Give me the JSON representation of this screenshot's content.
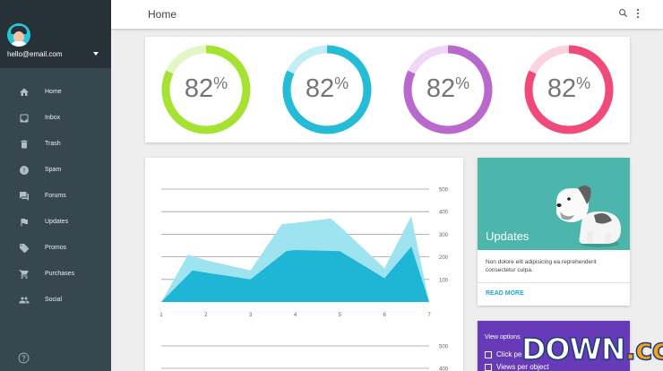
{
  "header": {
    "title": "Home",
    "search_icon": "search-icon",
    "more_icon": "more-vert-icon"
  },
  "sidebar": {
    "email": "hello@email.com",
    "items": [
      {
        "label": "Home",
        "icon": "home-icon"
      },
      {
        "label": "Inbox",
        "icon": "inbox-icon"
      },
      {
        "label": "Trash",
        "icon": "trash-icon"
      },
      {
        "label": "Spam",
        "icon": "spam-icon"
      },
      {
        "label": "Forums",
        "icon": "forum-icon"
      },
      {
        "label": "Updates",
        "icon": "flag-icon"
      },
      {
        "label": "Promos",
        "icon": "tag-icon"
      },
      {
        "label": "Purchases",
        "icon": "cart-icon"
      },
      {
        "label": "Social",
        "icon": "people-icon"
      }
    ],
    "help_icon": "help-icon"
  },
  "stats": [
    {
      "value": "82",
      "unit": "%",
      "percent": 82,
      "color": "#a5e232",
      "track": "#e4f6c8"
    },
    {
      "value": "82",
      "unit": "%",
      "percent": 82,
      "color": "#25bcd8",
      "track": "#c4eef5"
    },
    {
      "value": "82",
      "unit": "%",
      "percent": 82,
      "color": "#b969cc",
      "track": "#eed8f3"
    },
    {
      "value": "82",
      "unit": "%",
      "percent": 82,
      "color": "#ef4a79",
      "track": "#fbd3de"
    }
  ],
  "chart_data": [
    {
      "type": "area",
      "x": [
        1,
        2,
        3,
        4,
        5,
        6,
        7
      ],
      "x_tick_labels": [
        "1",
        "2",
        "3",
        "4",
        "5",
        "6",
        "7"
      ],
      "y_tick_labels": [
        "100",
        "200",
        "300",
        "400",
        "500"
      ],
      "ylim": [
        0,
        500
      ],
      "series": [
        {
          "x": [
            1,
            1.6,
            2,
            3,
            3.7,
            4,
            4.8,
            5,
            6,
            6.6,
            7
          ],
          "values": [
            0,
            210,
            185,
            140,
            345,
            350,
            370,
            335,
            150,
            380,
            0
          ],
          "color": "#9ee3f0"
        },
        {
          "x": [
            1,
            1.7,
            2,
            3,
            3.8,
            4,
            5,
            6,
            6.6,
            7
          ],
          "values": [
            0,
            140,
            130,
            100,
            225,
            230,
            225,
            105,
            245,
            0
          ],
          "color": "#1fb6d6"
        }
      ],
      "grid": true
    },
    {
      "type": "area",
      "y_tick_labels": [
        "500",
        "400"
      ],
      "ylim": [
        0,
        500
      ],
      "grid": true
    }
  ],
  "updates": {
    "title": "Updates",
    "text": "Non dolore elit adipisicing ea reprehenderit consectetur culpa.",
    "action": "READ MORE"
  },
  "view_options": {
    "title": "View options",
    "options": [
      "Click pe",
      "Views per object"
    ]
  },
  "watermark": {
    "main": "DOWN",
    "suffix": ".cc"
  }
}
